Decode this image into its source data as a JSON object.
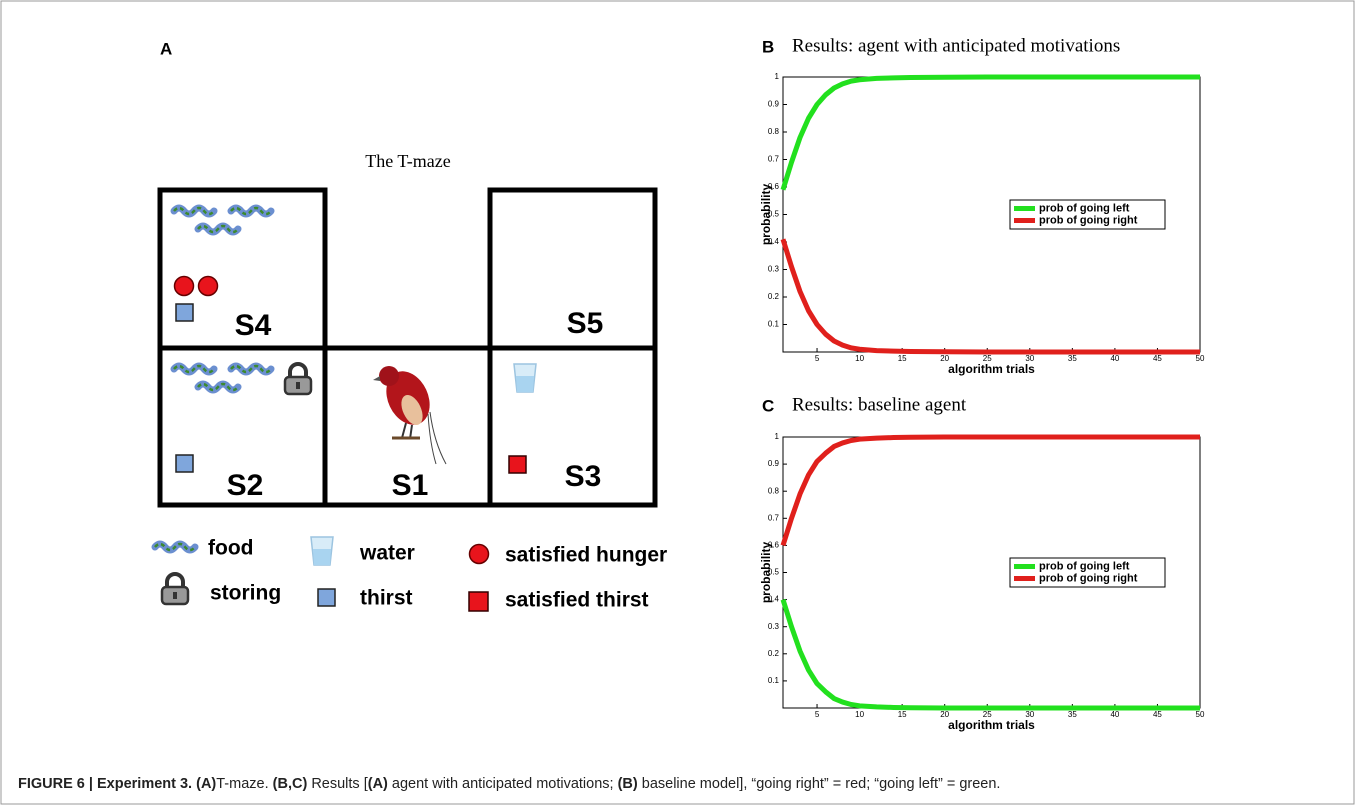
{
  "panel_a": {
    "label": "A",
    "title": "The T-maze",
    "states": [
      "S4",
      "S5",
      "S2",
      "S1",
      "S3"
    ],
    "legend": [
      "food",
      "water",
      "satisfied hunger",
      "storing",
      "thirst",
      "satisfied thirst"
    ]
  },
  "chart_data": [
    {
      "type": "line",
      "panel_label": "B",
      "title": "Results: agent with anticipated motivations",
      "xlabel": "algorithm trials",
      "ylabel": "probability",
      "x": [
        1,
        2,
        3,
        4,
        5,
        6,
        7,
        8,
        9,
        10,
        12,
        14,
        16,
        20,
        25,
        30,
        35,
        40,
        45,
        50
      ],
      "series": [
        {
          "name": "prob of going left",
          "color": "#22e01e",
          "values": [
            0.59,
            0.69,
            0.78,
            0.85,
            0.9,
            0.935,
            0.96,
            0.975,
            0.985,
            0.99,
            0.995,
            0.997,
            0.998,
            0.999,
            1,
            1,
            1,
            1,
            1,
            1
          ]
        },
        {
          "name": "prob of going right",
          "color": "#e0201c",
          "values": [
            0.41,
            0.31,
            0.22,
            0.15,
            0.1,
            0.065,
            0.04,
            0.025,
            0.015,
            0.01,
            0.005,
            0.003,
            0.002,
            0.001,
            0,
            0,
            0,
            0,
            0,
            0
          ]
        }
      ],
      "xlim": [
        1,
        50
      ],
      "ylim": [
        0,
        1
      ],
      "xticks": [
        5,
        10,
        15,
        20,
        25,
        30,
        35,
        40,
        45,
        50
      ],
      "yticks": [
        0.1,
        0.2,
        0.3,
        0.4,
        0.5,
        0.6,
        0.7,
        0.8,
        0.9,
        1
      ],
      "legend": "center right"
    },
    {
      "type": "line",
      "panel_label": "C",
      "title": "Results: baseline agent",
      "xlabel": "algorithm trials",
      "ylabel": "probability",
      "x": [
        1,
        2,
        3,
        4,
        5,
        6,
        7,
        8,
        9,
        10,
        12,
        14,
        16,
        20,
        25,
        30,
        35,
        40,
        45,
        50
      ],
      "series": [
        {
          "name": "prob of going left",
          "color": "#22e01e",
          "values": [
            0.4,
            0.3,
            0.21,
            0.14,
            0.09,
            0.06,
            0.035,
            0.022,
            0.013,
            0.008,
            0.004,
            0.002,
            0.001,
            0,
            0,
            0,
            0,
            0,
            0,
            0
          ]
        },
        {
          "name": "prob of going right",
          "color": "#e0201c",
          "values": [
            0.6,
            0.7,
            0.79,
            0.86,
            0.91,
            0.94,
            0.965,
            0.978,
            0.987,
            0.992,
            0.996,
            0.998,
            0.999,
            1,
            1,
            1,
            1,
            1,
            1,
            1
          ]
        }
      ],
      "xlim": [
        1,
        50
      ],
      "ylim": [
        0,
        1
      ],
      "xticks": [
        5,
        10,
        15,
        20,
        25,
        30,
        35,
        40,
        45,
        50
      ],
      "yticks": [
        0.1,
        0.2,
        0.3,
        0.4,
        0.5,
        0.6,
        0.7,
        0.8,
        0.9,
        1
      ],
      "legend": "center right"
    }
  ],
  "caption": [
    "FIGURE 6 | Experiment 3. ",
    "(A)",
    "T-maze. ",
    "(B,C)",
    " Results [",
    "(A)",
    " agent with anticipated motivations; ",
    "(B)",
    " baseline model], “going right” = red; “going left” = green."
  ]
}
